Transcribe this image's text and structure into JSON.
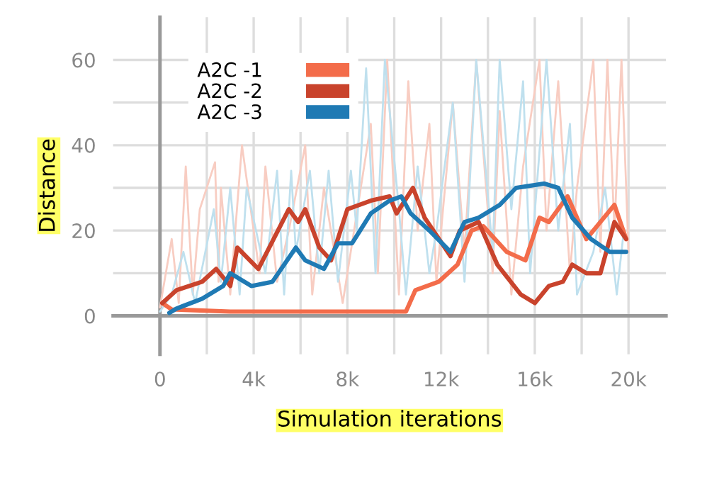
{
  "chart_data": {
    "type": "line",
    "xlabel": "Simulation iterations",
    "ylabel": "Distance",
    "xlim": [
      -2000,
      21600
    ],
    "ylim": [
      -9,
      70
    ],
    "xticks": [
      {
        "value": 0,
        "label": "0"
      },
      {
        "value": 2000,
        "label": null
      },
      {
        "value": 4000,
        "label": "4k"
      },
      {
        "value": 6000,
        "label": null
      },
      {
        "value": 8000,
        "label": "8k"
      },
      {
        "value": 10000,
        "label": null
      },
      {
        "value": 12000,
        "label": "12k"
      },
      {
        "value": 14000,
        "label": null
      },
      {
        "value": 16000,
        "label": "16k"
      },
      {
        "value": 18000,
        "label": null
      },
      {
        "value": 20000,
        "label": "20k"
      }
    ],
    "yticks": [
      0,
      {
        "value": 10,
        "label": null
      },
      20,
      {
        "value": 30,
        "label": null
      },
      40,
      {
        "value": 50,
        "label": null
      },
      60
    ],
    "grid": true,
    "legend": "top left",
    "line_style": "solid",
    "marker": "none",
    "series": [
      {
        "color": "#f8cdc2",
        "x": [
          0,
          500,
          800,
          1100,
          1400,
          1700,
          2350,
          2500,
          2600,
          3000,
          3500,
          4250,
          4500,
          5000,
          5500,
          6200,
          6500,
          7000,
          7800,
          9000,
          9300,
          9700,
          10200,
          10600,
          11000,
          11500,
          11800,
          12500,
          13000,
          13500,
          14200,
          14500,
          15000,
          15500,
          16200,
          16500,
          17000,
          17500,
          17800,
          18500,
          18800,
          19100,
          19400,
          19700,
          20000
        ],
        "values": [
          2,
          18,
          3,
          35,
          5,
          25,
          36,
          8,
          30,
          5,
          40,
          10,
          35,
          8,
          20,
          40,
          5,
          30,
          3,
          45,
          10,
          60,
          5,
          55,
          20,
          45,
          8,
          50,
          15,
          60,
          10,
          48,
          5,
          35,
          60,
          20,
          55,
          10,
          30,
          60,
          15,
          60,
          20,
          60,
          15
        ]
      },
      {
        "color": "#bfe0ee",
        "x": [
          0,
          500,
          1000,
          1500,
          2300,
          2600,
          3000,
          3400,
          3700,
          4500,
          5000,
          5300,
          5600,
          5800,
          6400,
          6800,
          7200,
          7600,
          8150,
          8400,
          8800,
          9200,
          9600,
          10200,
          10500,
          11000,
          11500,
          11800,
          12500,
          13000,
          13500,
          14200,
          14500,
          15000,
          15500,
          15800,
          16500,
          17000,
          17500,
          17800,
          18500,
          19000,
          19500,
          19800
        ],
        "values": [
          1,
          5,
          15,
          3,
          25,
          8,
          30,
          5,
          30,
          10,
          34,
          5,
          34,
          15,
          34,
          10,
          34,
          8,
          34,
          20,
          58,
          10,
          60,
          25,
          5,
          35,
          10,
          20,
          50,
          8,
          60,
          15,
          60,
          25,
          55,
          10,
          60,
          20,
          45,
          5,
          15,
          30,
          5,
          20
        ]
      },
      {
        "name": "A2C -1",
        "color": "#f36c4a",
        "x": [
          100,
          500,
          3000,
          6000,
          9500,
          10500,
          10900,
          11900,
          12700,
          13300,
          13800,
          14800,
          15600,
          16200,
          16600,
          17400,
          18200,
          18800,
          19400,
          19900
        ],
        "values": [
          3,
          1.5,
          1,
          1,
          1,
          1,
          6,
          8,
          12,
          20,
          21,
          15,
          13,
          23,
          22,
          28,
          18,
          22,
          26,
          18
        ]
      },
      {
        "name": "A2C -2",
        "color": "#c9432c",
        "x": [
          100,
          700,
          1800,
          2400,
          3000,
          3300,
          4200,
          5500,
          5900,
          6200,
          6800,
          7300,
          8000,
          9000,
          9800,
          10100,
          10800,
          11300,
          12400,
          12800,
          13600,
          14400,
          15400,
          16000,
          16600,
          17200,
          17600,
          18200,
          18800,
          19400,
          19900
        ],
        "values": [
          3,
          6,
          8,
          11,
          7,
          16,
          11,
          25,
          22,
          25,
          16,
          13,
          25,
          27,
          28,
          24,
          30,
          23,
          14,
          20,
          22,
          12,
          5,
          3,
          7,
          8,
          12,
          10,
          10,
          22,
          18
        ]
      },
      {
        "name": "A2C -3",
        "color": "#1f7ab4",
        "x": [
          400,
          700,
          1800,
          2700,
          3000,
          3900,
          4800,
          5800,
          6200,
          7000,
          7600,
          8200,
          9000,
          9800,
          10300,
          10700,
          11500,
          12400,
          13000,
          13600,
          14500,
          15200,
          16400,
          17000,
          17600,
          18400,
          19200,
          19900
        ],
        "values": [
          0.7,
          1.7,
          4,
          7,
          10,
          7,
          8,
          16,
          13,
          11,
          17,
          17,
          24,
          27,
          28,
          24,
          20,
          15,
          22,
          23,
          26,
          30,
          31,
          30,
          23,
          18,
          15,
          15
        ]
      }
    ]
  }
}
